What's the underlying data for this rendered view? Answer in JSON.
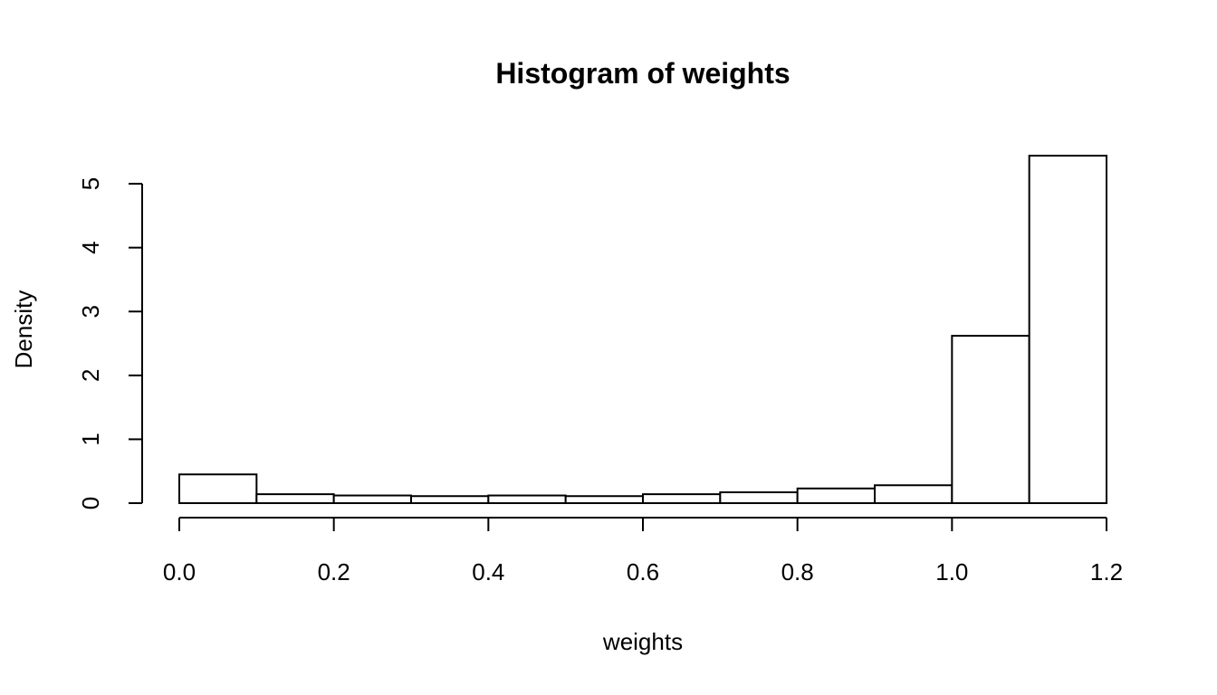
{
  "chart_data": {
    "type": "bar",
    "title": "Histogram of weights",
    "xlabel": "weights",
    "ylabel": "Density",
    "bins": [
      {
        "x0": 0.0,
        "x1": 0.1,
        "density": 0.45
      },
      {
        "x0": 0.1,
        "x1": 0.2,
        "density": 0.14
      },
      {
        "x0": 0.2,
        "x1": 0.3,
        "density": 0.12
      },
      {
        "x0": 0.3,
        "x1": 0.4,
        "density": 0.11
      },
      {
        "x0": 0.4,
        "x1": 0.5,
        "density": 0.12
      },
      {
        "x0": 0.5,
        "x1": 0.6,
        "density": 0.11
      },
      {
        "x0": 0.6,
        "x1": 0.7,
        "density": 0.14
      },
      {
        "x0": 0.7,
        "x1": 0.8,
        "density": 0.17
      },
      {
        "x0": 0.8,
        "x1": 0.9,
        "density": 0.23
      },
      {
        "x0": 0.9,
        "x1": 1.0,
        "density": 0.28
      },
      {
        "x0": 1.0,
        "x1": 1.1,
        "density": 2.62
      },
      {
        "x0": 1.1,
        "x1": 1.2,
        "density": 5.44
      }
    ],
    "xlim": [
      0.0,
      1.2
    ],
    "ylim": [
      0,
      5.44
    ],
    "x_ticks": [
      "0.0",
      "0.2",
      "0.4",
      "0.6",
      "0.8",
      "1.0",
      "1.2"
    ],
    "y_ticks": [
      "0",
      "1",
      "2",
      "3",
      "4",
      "5"
    ],
    "grid": false,
    "legend": "none"
  }
}
